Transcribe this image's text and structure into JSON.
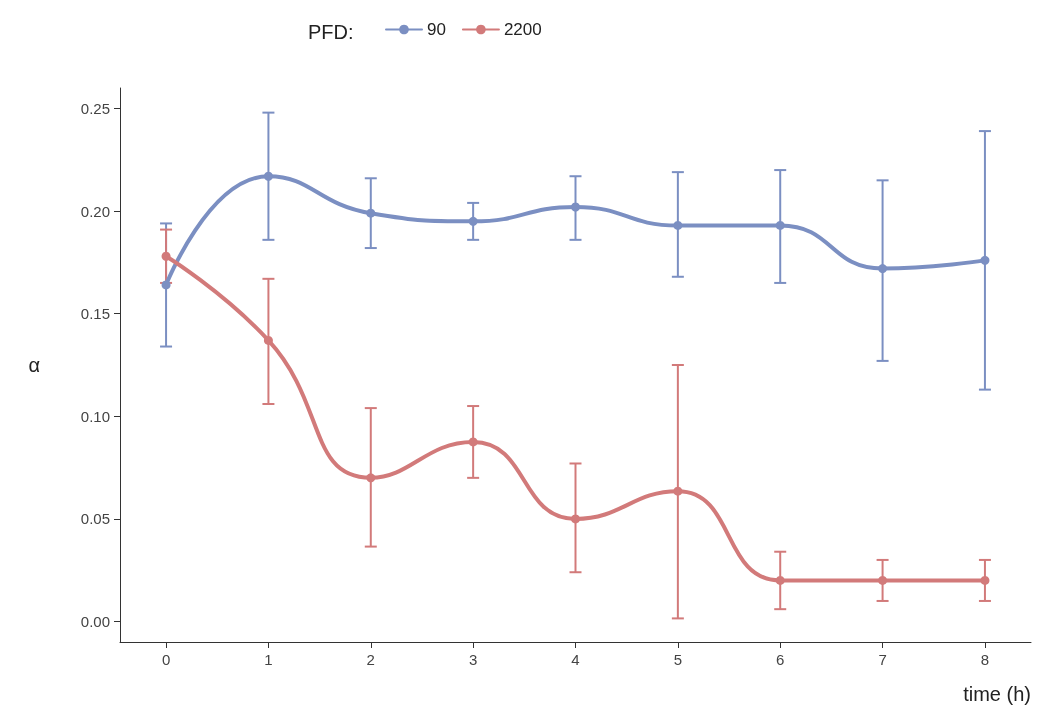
{
  "chart_data": {
    "type": "line",
    "legend_title": "PFD:",
    "xlabel": "time (h)",
    "ylabel": "α",
    "x": [
      0,
      1,
      2,
      3,
      4,
      5,
      6,
      7,
      8
    ],
    "series": [
      {
        "name": "90",
        "color": "#7b8fc2",
        "values": [
          0.164,
          0.217,
          0.199,
          0.195,
          0.202,
          0.193,
          0.193,
          0.172,
          0.176
        ],
        "errors": [
          [
            0.134,
            0.194
          ],
          [
            0.186,
            0.248
          ],
          [
            0.182,
            0.216
          ],
          [
            0.186,
            0.204
          ],
          [
            0.186,
            0.217
          ],
          [
            0.168,
            0.219
          ],
          [
            0.165,
            0.22
          ],
          [
            0.127,
            0.215
          ],
          [
            0.113,
            0.239
          ]
        ]
      },
      {
        "name": "2200",
        "color": "#d27a7a",
        "values": [
          0.178,
          0.137,
          0.07,
          0.0875,
          0.05,
          0.0635,
          0.02,
          0.02,
          0.02
        ],
        "errors": [
          [
            0.165,
            0.191
          ],
          [
            0.106,
            0.167
          ],
          [
            0.0365,
            0.104
          ],
          [
            0.07,
            0.105
          ],
          [
            0.024,
            0.077
          ],
          [
            0.0015,
            0.125
          ],
          [
            0.006,
            0.034
          ],
          [
            0.01,
            0.03
          ],
          [
            0.01,
            0.03
          ]
        ]
      }
    ],
    "xlim": [
      -0.45,
      8.45
    ],
    "xticks": [
      0,
      1,
      2,
      3,
      4,
      5,
      6,
      7,
      8
    ],
    "ylim": [
      -0.01,
      0.26
    ],
    "yticks": [
      {
        "value": 0,
        "label": "0.00"
      },
      {
        "value": 0.05,
        "label": "0.05"
      },
      {
        "value": 0.1,
        "label": "0.10"
      },
      {
        "value": 0.15,
        "label": "0.15"
      },
      {
        "value": 0.2,
        "label": "0.20"
      },
      {
        "value": 0.25,
        "label": "0.25"
      }
    ],
    "grid": false,
    "legend": "top",
    "marker": "circle",
    "line_style": "solid"
  }
}
